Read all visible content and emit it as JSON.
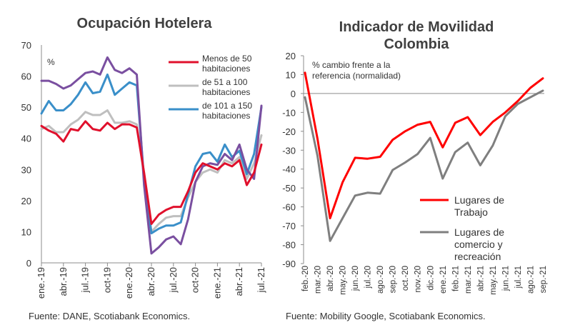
{
  "chart_data": [
    {
      "type": "line",
      "title": "Ocupación Hotelera",
      "unit_label": "%",
      "ylim": [
        0,
        70
      ],
      "yticks": [
        "0",
        "10",
        "20",
        "30",
        "40",
        "50",
        "60",
        "70"
      ],
      "x_tick_labels": [
        "ene.-19",
        "abr.-19",
        "jul.-19",
        "oct-19",
        "ene.-20",
        "abr.-20",
        "jul.-20",
        "oct-20",
        "ene.-21",
        "abr.-21",
        "jul.-21"
      ],
      "x": [
        "ene.-19",
        "feb.-19",
        "mar.-19",
        "abr.-19",
        "may.-19",
        "jun.-19",
        "jul.-19",
        "ago.-19",
        "sep.-19",
        "oct.-19",
        "nov.-19",
        "dic.-19",
        "ene.-20",
        "feb.-20",
        "mar.-20",
        "abr.-20",
        "may.-20",
        "jun.-20",
        "jul.-20",
        "ago.-20",
        "sep.-20",
        "oct.-20",
        "nov.-20",
        "dic.-20",
        "ene.-21",
        "feb.-21",
        "mar.-21",
        "abr.-21",
        "may.-21",
        "jun.-21",
        "jul.-21"
      ],
      "series": [
        {
          "name": "Menos de 50 habitaciones",
          "name_lines": [
            "Menos de 50",
            "habitaciones"
          ],
          "color": "#e0102c",
          "values": [
            44,
            42.5,
            41.5,
            39,
            43,
            42.5,
            45.5,
            43,
            42.5,
            45,
            43,
            44.5,
            44.5,
            43.5,
            29,
            12.5,
            15.5,
            17,
            18,
            18,
            23,
            29,
            32,
            31,
            30,
            32,
            31,
            33,
            25,
            29,
            38
          ]
        },
        {
          "name": "de 51 a 100 habitaciones",
          "name_lines": [
            "de 51 a 100",
            "habitaciones"
          ],
          "color": "#bfbfbf",
          "values": [
            43,
            44,
            42,
            42,
            44.5,
            46,
            48.5,
            47.5,
            47.5,
            49,
            45,
            45,
            45.5,
            44.5,
            28,
            10,
            12.5,
            14.5,
            15,
            15,
            21,
            26,
            29,
            30,
            29,
            33,
            32,
            34,
            27,
            32,
            41
          ]
        },
        {
          "name": "de 101 a 150 habitaciones",
          "name_lines": [
            "de 101 a 150",
            "habitaciones"
          ],
          "color": "#3a8fc9",
          "values": [
            48,
            52,
            49,
            49,
            51,
            54,
            58,
            54.5,
            55,
            60.5,
            54,
            56,
            58,
            57,
            27,
            9.5,
            11,
            12,
            12,
            13,
            22,
            31,
            35,
            35.5,
            32.5,
            38,
            34,
            36,
            28.5,
            35,
            50
          ]
        },
        {
          "name": "",
          "color": "#7a4fa0",
          "values": [
            58.5,
            58.5,
            57.5,
            56,
            57,
            59,
            61,
            61.5,
            60.5,
            66,
            62,
            61,
            62.5,
            60.5,
            25,
            3,
            5,
            7.5,
            8.5,
            6,
            14,
            26,
            31,
            32,
            31.5,
            35,
            33,
            38,
            30,
            27,
            50.5
          ]
        }
      ],
      "source": "Fuente: DANE, Scotiabank Economics."
    },
    {
      "type": "line",
      "title_lines": [
        "Indicador de Movilidad",
        "Colombia"
      ],
      "note_lines": [
        "% cambio frente a la",
        "referencia (normalidad)"
      ],
      "ylim": [
        -90,
        20
      ],
      "yticks": [
        "-90",
        "-80",
        "-70",
        "-60",
        "-50",
        "-40",
        "-30",
        "-20",
        "-10",
        "0",
        "10",
        "20"
      ],
      "x": [
        "feb.-20",
        "mar.-20",
        "abr.-20",
        "may.-20",
        "jun.-20",
        "jul.-20",
        "ago.-20",
        "sep.-20",
        "oct.-20",
        "nov.-20",
        "dic.-20",
        "ene.-21",
        "feb.-21",
        "mar.-21",
        "abr.-21",
        "may.-21",
        "jun.-21",
        "jul.-21",
        "ago.-21",
        "sep.-21"
      ],
      "series": [
        {
          "name": "Lugares de Trabajo",
          "name_lines": [
            "Lugares de",
            "Trabajo"
          ],
          "color": "#ff0000",
          "values": [
            11,
            -24,
            -66,
            -47,
            -34,
            -34.5,
            -33.5,
            -24.5,
            -20,
            -16.5,
            -15,
            -28.5,
            -15.5,
            -12.5,
            -22,
            -15,
            -10,
            -4,
            3,
            8
          ]
        },
        {
          "name": "Lugares de comercio y recreación",
          "name_lines": [
            "Lugares de",
            "comercio y",
            "recreación"
          ],
          "color": "#7f7f7f",
          "values": [
            -2,
            -33,
            -78,
            -66,
            -54,
            -52.5,
            -53,
            -40.5,
            -36.5,
            -32,
            -23.5,
            -45,
            -31,
            -26,
            -38,
            -27.5,
            -12,
            -5.5,
            -2,
            1.5
          ]
        }
      ],
      "source": "Fuente: Mobility Google, Scotiabank Economics."
    }
  ]
}
